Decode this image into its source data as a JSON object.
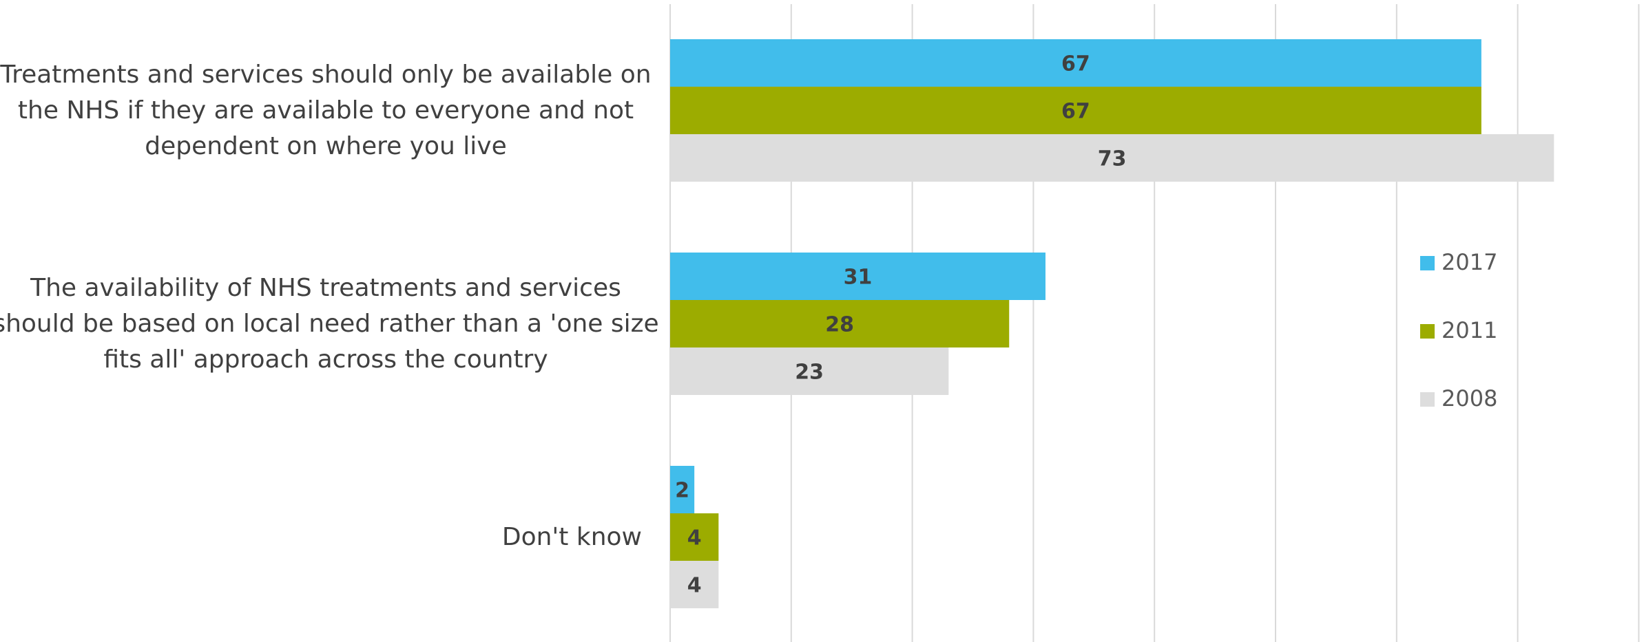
{
  "chart_data": {
    "type": "bar",
    "orientation": "horizontal",
    "categories": [
      "Treatments and services should only be available on the NHS if they are available to everyone and not dependent on where you live",
      "The availability of NHS treatments and services should be based on local need rather than a 'one size fits all' approach across the country",
      "Don't know"
    ],
    "series": [
      {
        "name": "2017",
        "values": [
          67,
          31,
          2
        ],
        "color": "#41BDEB"
      },
      {
        "name": "2011",
        "values": [
          67,
          28,
          4
        ],
        "color": "#9CAC00"
      },
      {
        "name": "2008",
        "values": [
          73,
          23,
          4
        ],
        "color": "#DDDDDD"
      }
    ],
    "title": "",
    "xlabel": "",
    "ylabel": "",
    "xlim": [
      0,
      80
    ],
    "grid": true,
    "data_labels": true,
    "legend_position": "right"
  }
}
